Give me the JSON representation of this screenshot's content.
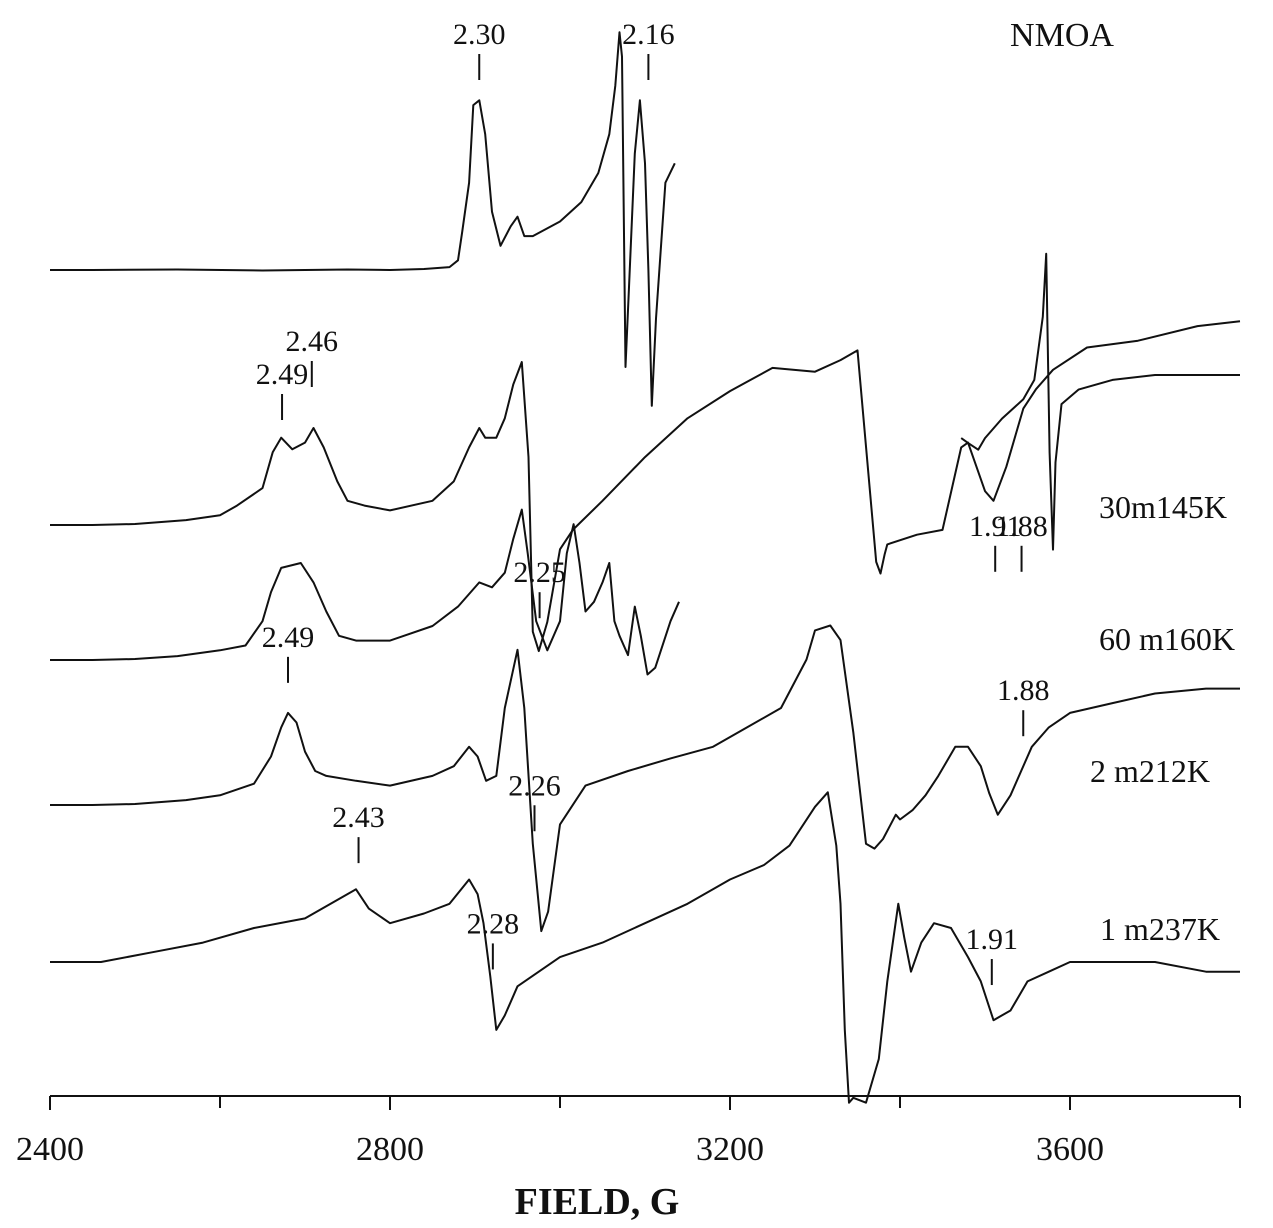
{
  "chart_data": {
    "type": "line",
    "title": "",
    "xlabel": "FIELD, G",
    "ylabel": "",
    "xlim": [
      2400,
      3800
    ],
    "grid": false,
    "x_ticks": [
      2400,
      2800,
      3200,
      3600
    ],
    "x_minor_ticks": [
      2600,
      3000,
      3400,
      3800
    ],
    "x_tick_labels": [
      "2400",
      "2800",
      "3200",
      "3600"
    ],
    "sample_label": "NMOA",
    "series": [
      {
        "name": "",
        "offset": 0,
        "points": [
          [
            2400,
            0
          ],
          [
            2450,
            0
          ],
          [
            2550,
            0.5
          ],
          [
            2650,
            -0.5
          ],
          [
            2750,
            0.5
          ],
          [
            2800,
            0
          ],
          [
            2840,
            1
          ],
          [
            2870,
            3
          ],
          [
            2880,
            10
          ],
          [
            2885,
            40
          ],
          [
            2893,
            90
          ],
          [
            2898,
            170
          ],
          [
            2905,
            175
          ],
          [
            2912,
            140
          ],
          [
            2920,
            60
          ],
          [
            2930,
            25
          ],
          [
            2942,
            45
          ],
          [
            2950,
            55
          ],
          [
            2958,
            35
          ],
          [
            2968,
            35
          ],
          [
            3000,
            50
          ],
          [
            3025,
            70
          ],
          [
            3045,
            100
          ],
          [
            3058,
            140
          ],
          [
            3065,
            190
          ],
          [
            3070,
            245
          ],
          [
            3073,
            220
          ],
          [
            3077,
            -100
          ],
          [
            3081,
            -20
          ],
          [
            3088,
            120
          ],
          [
            3094,
            175
          ],
          [
            3100,
            110
          ],
          [
            3104,
            0
          ],
          [
            3108,
            -140
          ],
          [
            3113,
            -50
          ],
          [
            3124,
            90
          ],
          [
            3135,
            110
          ]
        ]
      },
      {
        "name": "",
        "offset": 0,
        "points": [
          [
            3472,
            -65
          ],
          [
            3480,
            -70
          ],
          [
            3492,
            -77
          ],
          [
            3500,
            -65
          ],
          [
            3520,
            -45
          ],
          [
            3545,
            -25
          ],
          [
            3558,
            -5
          ],
          [
            3568,
            60
          ],
          [
            3572,
            125
          ],
          [
            3576,
            -80
          ],
          [
            3580,
            -180
          ],
          [
            3583,
            -90
          ],
          [
            3590,
            -30
          ],
          [
            3610,
            -15
          ],
          [
            3650,
            -5
          ],
          [
            3700,
            0
          ],
          [
            3760,
            0
          ],
          [
            3800,
            0
          ]
        ]
      },
      {
        "name": "30m145K",
        "offset": 0,
        "points": [
          [
            2400,
            0
          ],
          [
            2450,
            0
          ],
          [
            2500,
            1
          ],
          [
            2560,
            5
          ],
          [
            2600,
            10
          ],
          [
            2620,
            20
          ],
          [
            2650,
            38
          ],
          [
            2662,
            75
          ],
          [
            2672,
            90
          ],
          [
            2685,
            78
          ],
          [
            2700,
            85
          ],
          [
            2710,
            100
          ],
          [
            2722,
            80
          ],
          [
            2738,
            45
          ],
          [
            2750,
            25
          ],
          [
            2770,
            20
          ],
          [
            2800,
            15
          ],
          [
            2850,
            25
          ],
          [
            2875,
            45
          ],
          [
            2893,
            80
          ],
          [
            2905,
            100
          ],
          [
            2912,
            90
          ],
          [
            2925,
            90
          ],
          [
            2935,
            110
          ],
          [
            2945,
            145
          ],
          [
            2955,
            168
          ],
          [
            2963,
            70
          ],
          [
            2968,
            -110
          ],
          [
            2975,
            -130
          ],
          [
            2985,
            -100
          ],
          [
            3000,
            -25
          ],
          [
            3015,
            -5
          ],
          [
            3050,
            25
          ],
          [
            3100,
            70
          ],
          [
            3150,
            110
          ],
          [
            3200,
            138
          ],
          [
            3250,
            162
          ],
          [
            3300,
            158
          ],
          [
            3330,
            170
          ],
          [
            3350,
            180
          ],
          [
            3372,
            -38
          ],
          [
            3377,
            -50
          ],
          [
            3382,
            -30
          ],
          [
            3385,
            -20
          ],
          [
            3420,
            -10
          ],
          [
            3450,
            -5
          ],
          [
            3472,
            80
          ],
          [
            3480,
            85
          ],
          [
            3490,
            60
          ],
          [
            3500,
            35
          ],
          [
            3510,
            25
          ],
          [
            3525,
            60
          ],
          [
            3545,
            120
          ],
          [
            3560,
            140
          ],
          [
            3580,
            160
          ],
          [
            3620,
            183
          ],
          [
            3680,
            190
          ],
          [
            3750,
            205
          ],
          [
            3800,
            210
          ]
        ]
      },
      {
        "name": "60 m160K",
        "offset": 0,
        "points": [
          [
            2400,
            0
          ],
          [
            2450,
            0
          ],
          [
            2500,
            1
          ],
          [
            2550,
            4
          ],
          [
            2600,
            10
          ],
          [
            2630,
            15
          ],
          [
            2650,
            40
          ],
          [
            2660,
            70
          ],
          [
            2672,
            95
          ],
          [
            2695,
            100
          ],
          [
            2710,
            80
          ],
          [
            2725,
            50
          ],
          [
            2740,
            25
          ],
          [
            2760,
            20
          ],
          [
            2800,
            20
          ],
          [
            2850,
            35
          ],
          [
            2880,
            55
          ],
          [
            2905,
            80
          ],
          [
            2920,
            75
          ],
          [
            2935,
            90
          ],
          [
            2945,
            125
          ],
          [
            2955,
            155
          ],
          [
            2962,
            110
          ],
          [
            2972,
            40
          ],
          [
            2985,
            10
          ],
          [
            3000,
            40
          ],
          [
            3008,
            110
          ],
          [
            3016,
            140
          ],
          [
            3023,
            100
          ],
          [
            3030,
            50
          ],
          [
            3040,
            60
          ],
          [
            3050,
            80
          ],
          [
            3058,
            100
          ],
          [
            3064,
            40
          ],
          [
            3070,
            25
          ],
          [
            3080,
            5
          ],
          [
            3088,
            55
          ],
          [
            3095,
            25
          ],
          [
            3103,
            -15
          ],
          [
            3112,
            -8
          ],
          [
            3130,
            40
          ],
          [
            3140,
            60
          ]
        ]
      },
      {
        "name": "2 m212K",
        "offset": 0,
        "points": [
          [
            2400,
            0
          ],
          [
            2450,
            0
          ],
          [
            2500,
            1
          ],
          [
            2560,
            5
          ],
          [
            2600,
            10
          ],
          [
            2640,
            22
          ],
          [
            2660,
            50
          ],
          [
            2672,
            80
          ],
          [
            2680,
            95
          ],
          [
            2690,
            85
          ],
          [
            2700,
            55
          ],
          [
            2712,
            35
          ],
          [
            2725,
            30
          ],
          [
            2760,
            25
          ],
          [
            2800,
            20
          ],
          [
            2850,
            30
          ],
          [
            2875,
            40
          ],
          [
            2893,
            60
          ],
          [
            2903,
            50
          ],
          [
            2913,
            25
          ],
          [
            2925,
            30
          ],
          [
            2935,
            100
          ],
          [
            2950,
            160
          ],
          [
            2958,
            100
          ],
          [
            2968,
            -40
          ],
          [
            2978,
            -130
          ],
          [
            2986,
            -110
          ],
          [
            3000,
            -20
          ],
          [
            3030,
            20
          ],
          [
            3080,
            35
          ],
          [
            3130,
            48
          ],
          [
            3180,
            60
          ],
          [
            3220,
            80
          ],
          [
            3260,
            100
          ],
          [
            3290,
            150
          ],
          [
            3300,
            180
          ],
          [
            3318,
            185
          ],
          [
            3330,
            170
          ],
          [
            3345,
            75
          ],
          [
            3360,
            -40
          ],
          [
            3370,
            -45
          ],
          [
            3380,
            -35
          ],
          [
            3395,
            -10
          ],
          [
            3400,
            -15
          ],
          [
            3415,
            -5
          ],
          [
            3430,
            10
          ],
          [
            3445,
            30
          ],
          [
            3465,
            60
          ],
          [
            3480,
            60
          ],
          [
            3495,
            40
          ],
          [
            3505,
            12
          ],
          [
            3515,
            -10
          ],
          [
            3530,
            10
          ],
          [
            3555,
            60
          ],
          [
            3575,
            80
          ],
          [
            3600,
            95
          ],
          [
            3650,
            105
          ],
          [
            3700,
            115
          ],
          [
            3760,
            120
          ],
          [
            3800,
            120
          ]
        ]
      },
      {
        "name": "1 m237K",
        "offset": 0,
        "points": [
          [
            2400,
            0
          ],
          [
            2460,
            0
          ],
          [
            2520,
            10
          ],
          [
            2580,
            20
          ],
          [
            2640,
            35
          ],
          [
            2700,
            45
          ],
          [
            2750,
            70
          ],
          [
            2760,
            75
          ],
          [
            2775,
            55
          ],
          [
            2800,
            40
          ],
          [
            2840,
            50
          ],
          [
            2870,
            60
          ],
          [
            2893,
            85
          ],
          [
            2903,
            70
          ],
          [
            2910,
            40
          ],
          [
            2918,
            -15
          ],
          [
            2925,
            -70
          ],
          [
            2935,
            -55
          ],
          [
            2950,
            -25
          ],
          [
            3000,
            5
          ],
          [
            3050,
            20
          ],
          [
            3100,
            40
          ],
          [
            3150,
            60
          ],
          [
            3200,
            85
          ],
          [
            3240,
            100
          ],
          [
            3270,
            120
          ],
          [
            3300,
            160
          ],
          [
            3315,
            175
          ],
          [
            3325,
            120
          ],
          [
            3330,
            60
          ],
          [
            3335,
            -70
          ],
          [
            3340,
            -145
          ],
          [
            3345,
            -140
          ],
          [
            3360,
            -145
          ],
          [
            3375,
            -100
          ],
          [
            3385,
            -20
          ],
          [
            3398,
            60
          ],
          [
            3405,
            25
          ],
          [
            3413,
            -10
          ],
          [
            3425,
            20
          ],
          [
            3440,
            40
          ],
          [
            3460,
            35
          ],
          [
            3480,
            5
          ],
          [
            3495,
            -20
          ],
          [
            3510,
            -60
          ],
          [
            3530,
            -50
          ],
          [
            3550,
            -20
          ],
          [
            3575,
            -10
          ],
          [
            3600,
            0
          ],
          [
            3650,
            0
          ],
          [
            3700,
            0
          ],
          [
            3760,
            -10
          ],
          [
            3800,
            -10
          ]
        ]
      }
    ],
    "annotations": [
      {
        "text": "2.30",
        "series": 0,
        "x": 2905
      },
      {
        "text": "2.16",
        "series": 0,
        "x": 3104
      },
      {
        "text": "2.49",
        "series": 2,
        "x": 2673
      },
      {
        "text": "2.46",
        "series": 2,
        "x": 2708
      },
      {
        "text": "2.25",
        "series": 2,
        "x": 2976
      },
      {
        "text": "1.91",
        "series": 3,
        "x": 3512
      },
      {
        "text": "1.88",
        "series": 3,
        "x": 3543
      },
      {
        "text": "2.49",
        "series": 4,
        "x": 2680
      },
      {
        "text": "2.26",
        "series": 4,
        "x": 2970
      },
      {
        "text": "1.88",
        "series": 4,
        "x": 3545
      },
      {
        "text": "2.43",
        "series": 5,
        "x": 2763
      },
      {
        "text": "2.28",
        "series": 5,
        "x": 2921
      },
      {
        "text": "1.91",
        "series": 5,
        "x": 3508
      }
    ]
  }
}
